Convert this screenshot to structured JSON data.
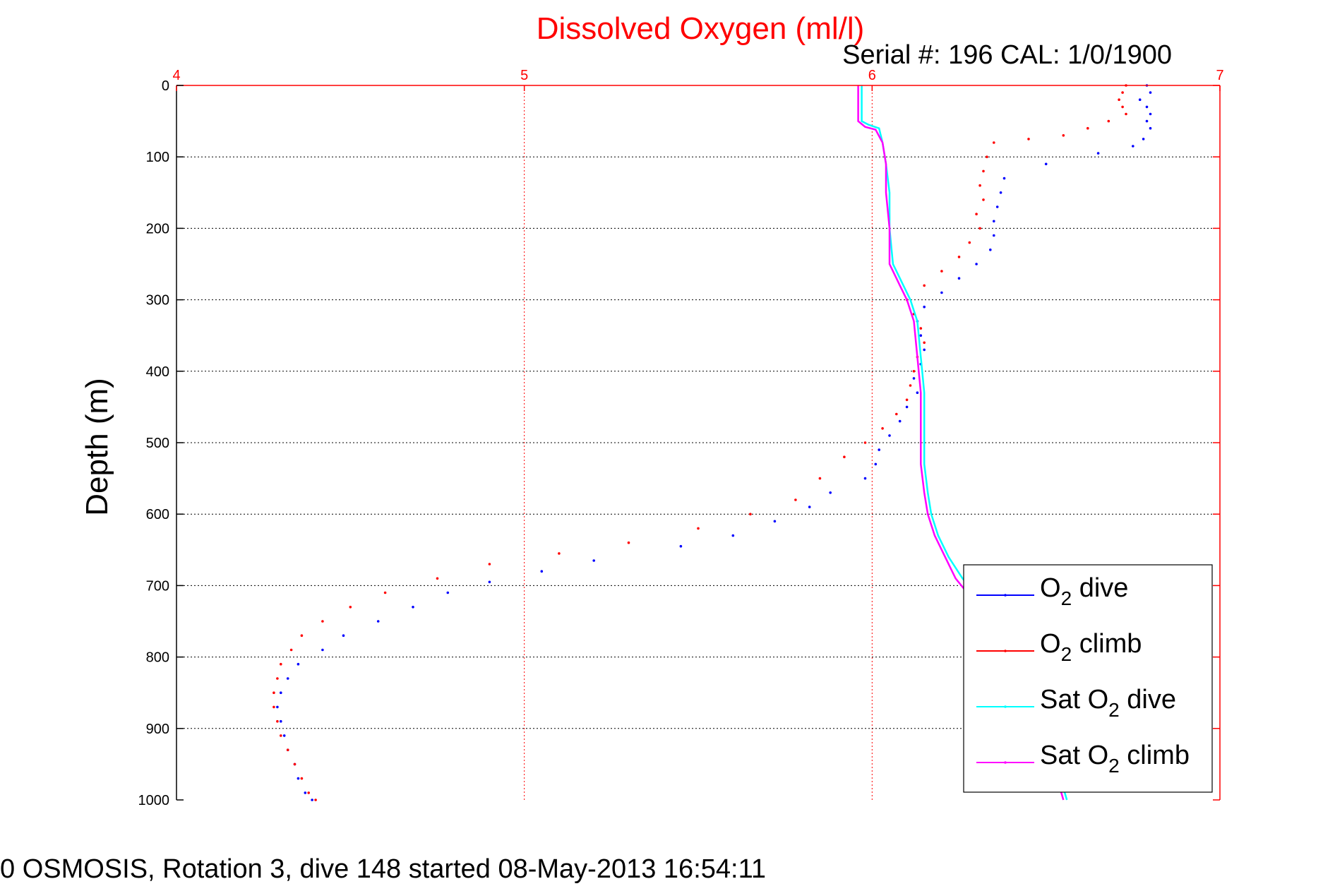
{
  "chart_data": {
    "type": "scatter",
    "title": "Dissolved Oxygen (ml/l)",
    "subtitle": "Serial #: 196  CAL: 1/0/1900",
    "ylabel": "Depth (m)",
    "xlabel": "",
    "xlim": [
      4,
      7
    ],
    "ylim": [
      0,
      1000
    ],
    "y_reversed": true,
    "x_axis_position": "top",
    "x_ticks": [
      "4",
      "5",
      "6",
      "7"
    ],
    "y_ticks": [
      "0",
      "100",
      "200",
      "300",
      "400",
      "500",
      "600",
      "700",
      "800",
      "900",
      "1000"
    ],
    "grid": true,
    "legend_position": "lower-right",
    "colors": {
      "title": "#ff0000",
      "x_axis": "#ff0000",
      "o2_dive": "#0000ff",
      "o2_climb": "#ff0000",
      "sat_dive": "#00ffff",
      "sat_climb": "#ff00ff"
    },
    "series": [
      {
        "name": "O2 dive",
        "style": "dots",
        "color": "#0000ff",
        "points": [
          [
            6.79,
            0
          ],
          [
            6.8,
            10
          ],
          [
            6.77,
            20
          ],
          [
            6.79,
            30
          ],
          [
            6.8,
            40
          ],
          [
            6.79,
            50
          ],
          [
            6.8,
            60
          ],
          [
            6.78,
            75
          ],
          [
            6.75,
            85
          ],
          [
            6.65,
            95
          ],
          [
            6.5,
            110
          ],
          [
            6.38,
            130
          ],
          [
            6.37,
            150
          ],
          [
            6.36,
            170
          ],
          [
            6.35,
            190
          ],
          [
            6.35,
            210
          ],
          [
            6.34,
            230
          ],
          [
            6.3,
            250
          ],
          [
            6.25,
            270
          ],
          [
            6.2,
            290
          ],
          [
            6.15,
            310
          ],
          [
            6.13,
            330
          ],
          [
            6.14,
            350
          ],
          [
            6.15,
            370
          ],
          [
            6.14,
            390
          ],
          [
            6.12,
            410
          ],
          [
            6.13,
            430
          ],
          [
            6.1,
            450
          ],
          [
            6.08,
            470
          ],
          [
            6.05,
            490
          ],
          [
            6.02,
            510
          ],
          [
            6.01,
            530
          ],
          [
            5.98,
            550
          ],
          [
            5.88,
            570
          ],
          [
            5.82,
            590
          ],
          [
            5.72,
            610
          ],
          [
            5.6,
            630
          ],
          [
            5.45,
            645
          ],
          [
            5.2,
            665
          ],
          [
            5.05,
            680
          ],
          [
            4.9,
            695
          ],
          [
            4.78,
            710
          ],
          [
            4.68,
            730
          ],
          [
            4.58,
            750
          ],
          [
            4.48,
            770
          ],
          [
            4.42,
            790
          ],
          [
            4.35,
            810
          ],
          [
            4.32,
            830
          ],
          [
            4.3,
            850
          ],
          [
            4.29,
            870
          ],
          [
            4.3,
            890
          ],
          [
            4.31,
            910
          ],
          [
            4.32,
            930
          ],
          [
            4.34,
            950
          ],
          [
            4.35,
            970
          ],
          [
            4.37,
            990
          ],
          [
            4.39,
            1000
          ]
        ]
      },
      {
        "name": "O2 climb",
        "style": "dots",
        "color": "#ff0000",
        "points": [
          [
            6.73,
            0
          ],
          [
            6.72,
            10
          ],
          [
            6.71,
            20
          ],
          [
            6.72,
            30
          ],
          [
            6.73,
            40
          ],
          [
            6.68,
            50
          ],
          [
            6.62,
            60
          ],
          [
            6.55,
            70
          ],
          [
            6.45,
            75
          ],
          [
            6.35,
            80
          ],
          [
            6.33,
            100
          ],
          [
            6.32,
            120
          ],
          [
            6.31,
            140
          ],
          [
            6.32,
            160
          ],
          [
            6.3,
            180
          ],
          [
            6.31,
            200
          ],
          [
            6.28,
            220
          ],
          [
            6.25,
            240
          ],
          [
            6.2,
            260
          ],
          [
            6.15,
            280
          ],
          [
            6.1,
            300
          ],
          [
            6.12,
            320
          ],
          [
            6.14,
            340
          ],
          [
            6.15,
            360
          ],
          [
            6.13,
            380
          ],
          [
            6.12,
            400
          ],
          [
            6.11,
            420
          ],
          [
            6.1,
            440
          ],
          [
            6.07,
            460
          ],
          [
            6.03,
            480
          ],
          [
            5.98,
            500
          ],
          [
            5.92,
            520
          ],
          [
            5.85,
            550
          ],
          [
            5.78,
            580
          ],
          [
            5.65,
            600
          ],
          [
            5.5,
            620
          ],
          [
            5.3,
            640
          ],
          [
            5.1,
            655
          ],
          [
            4.9,
            670
          ],
          [
            4.75,
            690
          ],
          [
            4.6,
            710
          ],
          [
            4.5,
            730
          ],
          [
            4.42,
            750
          ],
          [
            4.36,
            770
          ],
          [
            4.33,
            790
          ],
          [
            4.3,
            810
          ],
          [
            4.29,
            830
          ],
          [
            4.28,
            850
          ],
          [
            4.28,
            870
          ],
          [
            4.29,
            890
          ],
          [
            4.3,
            910
          ],
          [
            4.32,
            930
          ],
          [
            4.34,
            950
          ],
          [
            4.36,
            970
          ],
          [
            4.38,
            990
          ],
          [
            4.4,
            1000
          ]
        ]
      },
      {
        "name": "Sat O2 dive",
        "style": "line",
        "color": "#00ffff",
        "points": [
          [
            5.97,
            0
          ],
          [
            5.97,
            25
          ],
          [
            5.97,
            50
          ],
          [
            5.99,
            55
          ],
          [
            6.02,
            60
          ],
          [
            6.03,
            80
          ],
          [
            6.04,
            110
          ],
          [
            6.05,
            150
          ],
          [
            6.05,
            200
          ],
          [
            6.06,
            250
          ],
          [
            6.09,
            280
          ],
          [
            6.11,
            300
          ],
          [
            6.13,
            330
          ],
          [
            6.14,
            380
          ],
          [
            6.15,
            430
          ],
          [
            6.15,
            480
          ],
          [
            6.15,
            530
          ],
          [
            6.16,
            570
          ],
          [
            6.17,
            600
          ],
          [
            6.19,
            630
          ],
          [
            6.22,
            660
          ],
          [
            6.26,
            690
          ],
          [
            6.31,
            720
          ],
          [
            6.37,
            750
          ],
          [
            6.43,
            800
          ],
          [
            6.47,
            850
          ],
          [
            6.5,
            900
          ],
          [
            6.53,
            950
          ],
          [
            6.56,
            1000
          ]
        ]
      },
      {
        "name": "Sat O2 climb",
        "style": "line",
        "color": "#ff00ff",
        "points": [
          [
            5.96,
            0
          ],
          [
            5.96,
            25
          ],
          [
            5.96,
            50
          ],
          [
            5.98,
            58
          ],
          [
            6.01,
            62
          ],
          [
            6.03,
            80
          ],
          [
            6.04,
            110
          ],
          [
            6.04,
            150
          ],
          [
            6.05,
            200
          ],
          [
            6.05,
            250
          ],
          [
            6.08,
            280
          ],
          [
            6.1,
            300
          ],
          [
            6.12,
            330
          ],
          [
            6.13,
            380
          ],
          [
            6.14,
            430
          ],
          [
            6.14,
            480
          ],
          [
            6.14,
            530
          ],
          [
            6.15,
            570
          ],
          [
            6.16,
            600
          ],
          [
            6.18,
            630
          ],
          [
            6.21,
            660
          ],
          [
            6.24,
            690
          ],
          [
            6.29,
            720
          ],
          [
            6.35,
            750
          ],
          [
            6.41,
            800
          ],
          [
            6.46,
            850
          ],
          [
            6.49,
            900
          ],
          [
            6.52,
            950
          ],
          [
            6.55,
            1000
          ]
        ]
      }
    ],
    "legend": [
      {
        "base": "O",
        "sub": "2",
        "rest": " dive",
        "color": "#0000ff"
      },
      {
        "base": "O",
        "sub": "2",
        "rest": " climb",
        "color": "#ff0000"
      },
      {
        "base": "Sat O",
        "sub": "2",
        "rest": " dive",
        "color": "#00ffff"
      },
      {
        "base": "Sat O",
        "sub": "2",
        "rest": " climb",
        "color": "#ff00ff"
      }
    ]
  },
  "footer": "0 OSMOSIS, Rotation 3, dive 148 started 08-May-2013 16:54:11"
}
